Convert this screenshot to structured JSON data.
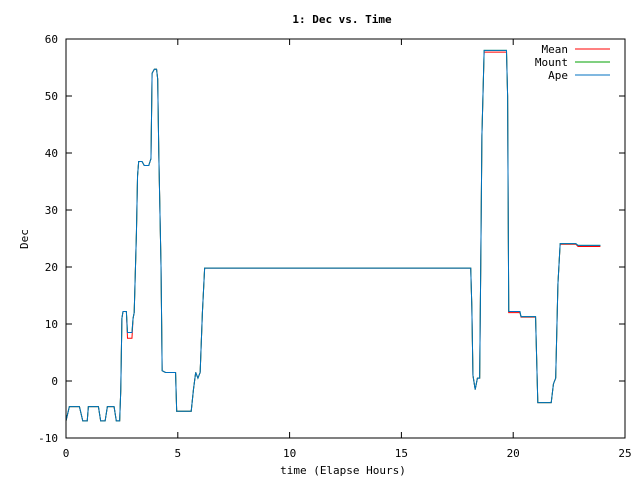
{
  "chart_data": {
    "type": "line",
    "title": "1: Dec vs. Time",
    "xlabel": "time (Elapse Hours)",
    "ylabel": "Dec",
    "xlim": [
      0,
      25
    ],
    "ylim": [
      -10,
      60
    ],
    "xticks": [
      0,
      5,
      10,
      15,
      20,
      25
    ],
    "xtick_labels": [
      "0",
      "5",
      "10",
      "15",
      "20",
      "25"
    ],
    "yticks": [
      -10,
      0,
      10,
      20,
      30,
      40,
      50,
      60
    ],
    "ytick_labels": [
      "-10",
      "0",
      "10",
      "20",
      "30",
      "40",
      "50",
      "60"
    ],
    "grid": false,
    "legend_position": "top-right",
    "series": [
      {
        "name": "Mean",
        "color": "#ff0000",
        "points": [
          [
            0.0,
            -7.0
          ],
          [
            0.15,
            -4.5
          ],
          [
            0.6,
            -4.5
          ],
          [
            0.75,
            -7.0
          ],
          [
            0.95,
            -7.0
          ],
          [
            1.0,
            -4.5
          ],
          [
            1.45,
            -4.5
          ],
          [
            1.55,
            -7.0
          ],
          [
            1.75,
            -7.0
          ],
          [
            1.85,
            -4.5
          ],
          [
            2.15,
            -4.5
          ],
          [
            2.25,
            -7.0
          ],
          [
            2.4,
            -7.0
          ],
          [
            2.45,
            -1.5
          ],
          [
            2.5,
            11.0
          ],
          [
            2.55,
            12.2
          ],
          [
            2.7,
            12.2
          ],
          [
            2.75,
            7.5
          ],
          [
            2.95,
            7.5
          ],
          [
            3.0,
            11.0
          ],
          [
            3.05,
            12.0
          ],
          [
            3.15,
            26.0
          ],
          [
            3.2,
            36.0
          ],
          [
            3.25,
            38.5
          ],
          [
            3.4,
            38.5
          ],
          [
            3.5,
            37.8
          ],
          [
            3.7,
            37.8
          ],
          [
            3.8,
            39.0
          ],
          [
            3.85,
            54.0
          ],
          [
            3.95,
            54.7
          ],
          [
            4.05,
            54.7
          ],
          [
            4.1,
            53.0
          ],
          [
            4.15,
            40.0
          ],
          [
            4.2,
            30.0
          ],
          [
            4.25,
            20.0
          ],
          [
            4.3,
            1.8
          ],
          [
            4.45,
            1.5
          ],
          [
            4.9,
            1.5
          ],
          [
            4.95,
            -5.3
          ],
          [
            5.6,
            -5.3
          ],
          [
            5.7,
            -1.5
          ],
          [
            5.8,
            1.5
          ],
          [
            5.9,
            0.5
          ],
          [
            6.0,
            1.5
          ],
          [
            6.1,
            12.0
          ],
          [
            6.2,
            19.8
          ],
          [
            18.1,
            19.8
          ],
          [
            18.15,
            13.0
          ],
          [
            18.2,
            1.0
          ],
          [
            18.3,
            -1.5
          ],
          [
            18.4,
            0.5
          ],
          [
            18.5,
            0.5
          ],
          [
            18.55,
            21.0
          ],
          [
            18.6,
            43.0
          ],
          [
            18.7,
            57.7
          ],
          [
            19.7,
            57.7
          ],
          [
            19.75,
            50.0
          ],
          [
            19.8,
            12.0
          ],
          [
            20.3,
            12.0
          ],
          [
            20.35,
            11.2
          ],
          [
            21.0,
            11.2
          ],
          [
            21.1,
            -3.8
          ],
          [
            21.7,
            -3.8
          ],
          [
            21.8,
            -0.5
          ],
          [
            21.9,
            0.5
          ],
          [
            22.0,
            17.0
          ],
          [
            22.1,
            24.0
          ],
          [
            22.8,
            24.0
          ],
          [
            22.9,
            23.6
          ],
          [
            23.9,
            23.6
          ]
        ]
      },
      {
        "name": "Mount",
        "color": "#00a000",
        "points": [
          [
            0.0,
            -7.0
          ],
          [
            0.15,
            -4.5
          ],
          [
            0.6,
            -4.5
          ],
          [
            0.75,
            -7.0
          ],
          [
            0.95,
            -7.0
          ],
          [
            1.0,
            -4.5
          ],
          [
            1.45,
            -4.5
          ],
          [
            1.55,
            -7.0
          ],
          [
            1.75,
            -7.0
          ],
          [
            1.85,
            -4.5
          ],
          [
            2.15,
            -4.5
          ],
          [
            2.25,
            -7.0
          ],
          [
            2.4,
            -7.0
          ],
          [
            2.45,
            -1.5
          ],
          [
            2.5,
            11.0
          ],
          [
            2.55,
            12.2
          ],
          [
            2.7,
            12.2
          ],
          [
            2.75,
            8.5
          ],
          [
            2.95,
            8.5
          ],
          [
            3.0,
            11.0
          ],
          [
            3.05,
            12.0
          ],
          [
            3.15,
            26.0
          ],
          [
            3.2,
            36.0
          ],
          [
            3.25,
            38.5
          ],
          [
            3.4,
            38.5
          ],
          [
            3.5,
            37.8
          ],
          [
            3.7,
            37.8
          ],
          [
            3.8,
            39.0
          ],
          [
            3.85,
            54.0
          ],
          [
            3.95,
            54.7
          ],
          [
            4.05,
            54.7
          ],
          [
            4.1,
            53.0
          ],
          [
            4.15,
            40.0
          ],
          [
            4.2,
            30.0
          ],
          [
            4.25,
            20.0
          ],
          [
            4.3,
            1.8
          ],
          [
            4.45,
            1.5
          ],
          [
            4.9,
            1.5
          ],
          [
            4.95,
            -5.3
          ],
          [
            5.6,
            -5.3
          ],
          [
            5.7,
            -1.5
          ],
          [
            5.8,
            1.5
          ],
          [
            5.9,
            0.5
          ],
          [
            6.0,
            1.5
          ],
          [
            6.1,
            12.0
          ],
          [
            6.2,
            19.8
          ],
          [
            18.1,
            19.8
          ],
          [
            18.15,
            13.0
          ],
          [
            18.2,
            1.0
          ],
          [
            18.3,
            -1.5
          ],
          [
            18.4,
            0.5
          ],
          [
            18.5,
            0.5
          ],
          [
            18.55,
            21.0
          ],
          [
            18.6,
            43.0
          ],
          [
            18.7,
            58.0
          ],
          [
            19.7,
            58.0
          ],
          [
            19.75,
            50.0
          ],
          [
            19.8,
            12.2
          ],
          [
            20.3,
            12.2
          ],
          [
            20.35,
            11.3
          ],
          [
            21.0,
            11.3
          ],
          [
            21.1,
            -3.8
          ],
          [
            21.7,
            -3.8
          ],
          [
            21.8,
            -0.5
          ],
          [
            21.9,
            0.5
          ],
          [
            22.0,
            17.0
          ],
          [
            22.1,
            24.1
          ],
          [
            22.8,
            24.1
          ],
          [
            22.9,
            23.8
          ],
          [
            23.9,
            23.8
          ]
        ]
      },
      {
        "name": "Ape",
        "color": "#0070c0",
        "points": [
          [
            0.0,
            -7.0
          ],
          [
            0.15,
            -4.5
          ],
          [
            0.6,
            -4.5
          ],
          [
            0.75,
            -7.0
          ],
          [
            0.95,
            -7.0
          ],
          [
            1.0,
            -4.5
          ],
          [
            1.45,
            -4.5
          ],
          [
            1.55,
            -7.0
          ],
          [
            1.75,
            -7.0
          ],
          [
            1.85,
            -4.5
          ],
          [
            2.15,
            -4.5
          ],
          [
            2.25,
            -7.0
          ],
          [
            2.4,
            -7.0
          ],
          [
            2.45,
            -1.5
          ],
          [
            2.5,
            11.0
          ],
          [
            2.55,
            12.2
          ],
          [
            2.7,
            12.2
          ],
          [
            2.75,
            8.5
          ],
          [
            2.95,
            8.5
          ],
          [
            3.0,
            11.0
          ],
          [
            3.05,
            12.0
          ],
          [
            3.15,
            26.0
          ],
          [
            3.2,
            36.0
          ],
          [
            3.25,
            38.5
          ],
          [
            3.4,
            38.5
          ],
          [
            3.5,
            37.8
          ],
          [
            3.7,
            37.8
          ],
          [
            3.8,
            39.0
          ],
          [
            3.85,
            54.0
          ],
          [
            3.95,
            54.7
          ],
          [
            4.05,
            54.7
          ],
          [
            4.1,
            53.0
          ],
          [
            4.15,
            40.0
          ],
          [
            4.2,
            30.0
          ],
          [
            4.25,
            20.0
          ],
          [
            4.3,
            1.8
          ],
          [
            4.45,
            1.5
          ],
          [
            4.9,
            1.5
          ],
          [
            4.95,
            -5.3
          ],
          [
            5.6,
            -5.3
          ],
          [
            5.7,
            -1.5
          ],
          [
            5.8,
            1.5
          ],
          [
            5.9,
            0.5
          ],
          [
            6.0,
            1.5
          ],
          [
            6.1,
            12.0
          ],
          [
            6.2,
            19.8
          ],
          [
            18.1,
            19.8
          ],
          [
            18.15,
            13.0
          ],
          [
            18.2,
            1.0
          ],
          [
            18.3,
            -1.5
          ],
          [
            18.4,
            0.5
          ],
          [
            18.5,
            0.5
          ],
          [
            18.55,
            21.0
          ],
          [
            18.6,
            43.0
          ],
          [
            18.7,
            58.0
          ],
          [
            19.7,
            58.0
          ],
          [
            19.75,
            50.0
          ],
          [
            19.8,
            12.2
          ],
          [
            20.3,
            12.2
          ],
          [
            20.35,
            11.3
          ],
          [
            21.0,
            11.3
          ],
          [
            21.1,
            -3.8
          ],
          [
            21.7,
            -3.8
          ],
          [
            21.8,
            -0.5
          ],
          [
            21.9,
            0.5
          ],
          [
            22.0,
            17.0
          ],
          [
            22.1,
            24.1
          ],
          [
            22.8,
            24.1
          ],
          [
            22.9,
            23.8
          ],
          [
            23.9,
            23.8
          ]
        ]
      }
    ]
  }
}
